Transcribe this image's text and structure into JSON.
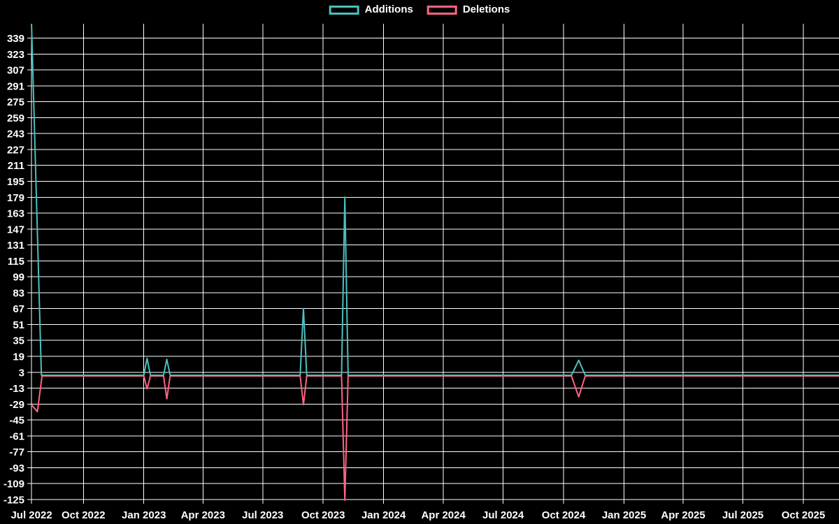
{
  "page": {
    "background_color": "#000000",
    "text_color": "#ffffff",
    "grid_color": "#ffffff"
  },
  "legend": {
    "position": "top-center",
    "items": [
      {
        "label": "Additions",
        "color": "#4bc0c0"
      },
      {
        "label": "Deletions",
        "color": "#ff6384"
      }
    ]
  },
  "chart_data": {
    "type": "line",
    "title": "",
    "grid": true,
    "legend_position": "top-center",
    "x_axis": {
      "type": "time",
      "start_date": "2022-07-14",
      "end_date": "2025-11-26",
      "tick_labels": [
        "Jul 2022",
        "Oct 2022",
        "Jan 2023",
        "Apr 2023",
        "Jul 2023",
        "Oct 2023",
        "Jan 2024",
        "Apr 2024",
        "Jul 2024",
        "Oct 2024",
        "Jan 2025",
        "Apr 2025",
        "Jul 2025",
        "Oct 2025"
      ],
      "tick_dates": [
        "2022-07-14",
        "2022-10-01",
        "2023-01-01",
        "2023-04-01",
        "2023-07-01",
        "2023-10-01",
        "2024-01-01",
        "2024-04-01",
        "2024-07-01",
        "2024-10-01",
        "2025-01-01",
        "2025-04-01",
        "2025-07-01",
        "2025-10-01"
      ]
    },
    "y_axis": {
      "min": -125,
      "max": 353,
      "tick_min": -125,
      "tick_max": 339,
      "tick_step": 16,
      "tick_labels": [
        339,
        323,
        307,
        291,
        275,
        259,
        243,
        227,
        211,
        195,
        179,
        163,
        147,
        131,
        115,
        99,
        83,
        67,
        51,
        35,
        19,
        3,
        -13,
        -29,
        -45,
        -61,
        -77,
        -93,
        -109,
        -125
      ]
    },
    "series": [
      {
        "name": "Additions",
        "color": "#4bc0c0",
        "points": [
          [
            "2022-07-14",
            353
          ],
          [
            "2022-07-29",
            0
          ],
          [
            "2023-01-01",
            0
          ],
          [
            "2023-01-06",
            17
          ],
          [
            "2023-01-11",
            0
          ],
          [
            "2023-01-31",
            0
          ],
          [
            "2023-02-05",
            16
          ],
          [
            "2023-02-10",
            0
          ],
          [
            "2023-08-27",
            0
          ],
          [
            "2023-09-01",
            67
          ],
          [
            "2023-09-06",
            0
          ],
          [
            "2023-10-29",
            0
          ],
          [
            "2023-11-03",
            179
          ],
          [
            "2023-11-08",
            0
          ],
          [
            "2024-10-13",
            0
          ],
          [
            "2024-10-24",
            15
          ],
          [
            "2024-11-03",
            0
          ],
          [
            "2025-11-26",
            0
          ]
        ]
      },
      {
        "name": "Deletions",
        "color": "#ff6384",
        "points": [
          [
            "2022-07-14",
            -29
          ],
          [
            "2022-07-23",
            -36
          ],
          [
            "2022-07-30",
            0
          ],
          [
            "2023-01-01",
            0
          ],
          [
            "2023-01-06",
            -13
          ],
          [
            "2023-01-11",
            0
          ],
          [
            "2023-01-31",
            0
          ],
          [
            "2023-02-05",
            -23
          ],
          [
            "2023-02-10",
            0
          ],
          [
            "2023-08-27",
            0
          ],
          [
            "2023-09-01",
            -29
          ],
          [
            "2023-09-06",
            0
          ],
          [
            "2023-10-29",
            0
          ],
          [
            "2023-11-03",
            -125
          ],
          [
            "2023-11-08",
            0
          ],
          [
            "2024-10-13",
            0
          ],
          [
            "2024-10-24",
            -21
          ],
          [
            "2024-11-03",
            0
          ],
          [
            "2025-11-26",
            0
          ]
        ]
      }
    ]
  }
}
